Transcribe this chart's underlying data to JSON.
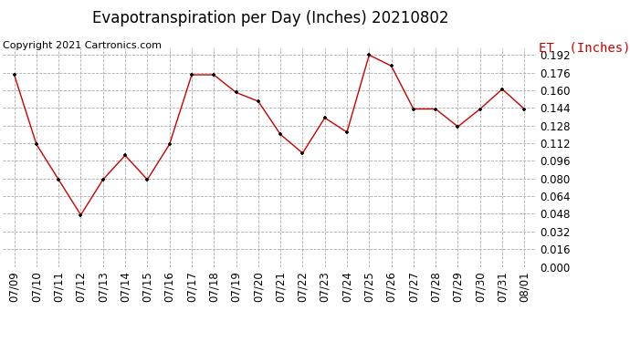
{
  "title": "Evapotranspiration per Day (Inches) 20210802",
  "copyright": "Copyright 2021 Cartronics.com",
  "legend_label": "ET  (Inches)",
  "dates": [
    "07/09",
    "07/10",
    "07/11",
    "07/12",
    "07/13",
    "07/14",
    "07/15",
    "07/16",
    "07/17",
    "07/18",
    "07/19",
    "07/20",
    "07/21",
    "07/22",
    "07/23",
    "07/24",
    "07/25",
    "07/26",
    "07/27",
    "07/28",
    "07/29",
    "07/30",
    "07/31",
    "08/01"
  ],
  "values": [
    0.174,
    0.111,
    0.079,
    0.047,
    0.079,
    0.101,
    0.079,
    0.111,
    0.174,
    0.174,
    0.158,
    0.15,
    0.12,
    0.103,
    0.135,
    0.122,
    0.192,
    0.182,
    0.143,
    0.143,
    0.127,
    0.143,
    0.161,
    0.143
  ],
  "line_color": "#cc0000",
  "marker_color": "#000000",
  "bg_color": "#ffffff",
  "grid_color": "#aaaaaa",
  "ylim_min": 0.0,
  "ylim_max": 0.1984,
  "ytick_step": 0.016,
  "title_fontsize": 12,
  "copyright_fontsize": 8,
  "legend_fontsize": 10,
  "tick_fontsize": 8.5
}
